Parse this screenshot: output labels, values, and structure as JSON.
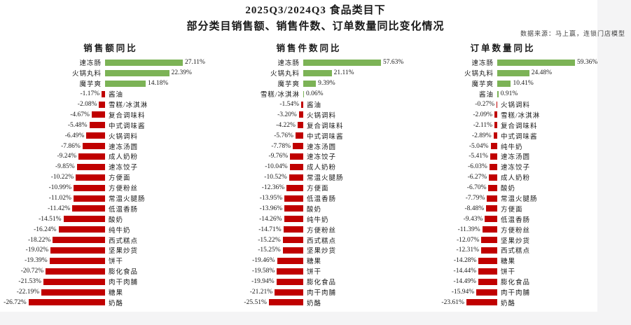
{
  "header": {
    "title_line1": "2025Q3/2024Q3 食品类目下",
    "title_line2": "部分类目销售额、销售件数、订单数量同比变化情况",
    "source_note": "数据来源：马上赢，连锁门店模型"
  },
  "colors": {
    "positive_bar": "#7CB356",
    "negative_bar": "#C00000",
    "page_background": "#f4f4f5",
    "chart_background": "#ffffff"
  },
  "chart_data": [
    {
      "type": "bar",
      "orientation": "horizontal",
      "title": "销售额同比",
      "unit": "%",
      "sorted": "descending",
      "categories": [
        "速冻肠",
        "火锅丸料",
        "魔芋爽",
        "酱油",
        "雪糕/冰淇淋",
        "复合调味料",
        "中式调味酱",
        "火锅调料",
        "速冻汤圆",
        "成人奶粉",
        "速冻饺子",
        "方便面",
        "方便粉丝",
        "常温火腿肠",
        "低温香肠",
        "酸奶",
        "纯牛奶",
        "西式糕点",
        "坚果炒货",
        "饼干",
        "膨化食品",
        "肉干肉脯",
        "糖果",
        "奶酪"
      ],
      "values": [
        27.11,
        22.39,
        14.18,
        -1.17,
        -2.08,
        -4.67,
        -5.48,
        -6.49,
        -7.86,
        -9.24,
        -9.85,
        -10.22,
        -10.99,
        -11.02,
        -11.42,
        -14.51,
        -16.24,
        -18.22,
        -19.02,
        -19.39,
        -20.72,
        -21.53,
        -22.19,
        -26.72
      ]
    },
    {
      "type": "bar",
      "orientation": "horizontal",
      "title": "销售件数同比",
      "unit": "%",
      "sorted": "descending",
      "categories": [
        "速冻肠",
        "火锅丸料",
        "魔芋爽",
        "雪糕/冰淇淋",
        "酱油",
        "火锅调料",
        "复合调味料",
        "中式调味酱",
        "速冻汤圆",
        "速冻饺子",
        "成人奶粉",
        "常温火腿肠",
        "方便面",
        "低温香肠",
        "酸奶",
        "纯牛奶",
        "方便粉丝",
        "西式糕点",
        "坚果炒货",
        "糖果",
        "饼干",
        "膨化食品",
        "肉干肉脯",
        "奶酪"
      ],
      "values": [
        57.63,
        21.11,
        9.39,
        0.06,
        -1.54,
        -3.2,
        -4.22,
        -5.76,
        -7.78,
        -9.76,
        -10.04,
        -10.52,
        -12.36,
        -13.95,
        -13.96,
        -14.26,
        -14.71,
        -15.22,
        -15.25,
        -19.46,
        -19.58,
        -19.94,
        -21.21,
        -25.51
      ]
    },
    {
      "type": "bar",
      "orientation": "horizontal",
      "title": "订单数量同比",
      "unit": "%",
      "sorted": "descending",
      "categories": [
        "速冻肠",
        "火锅丸料",
        "魔芋爽",
        "酱油",
        "火锅调料",
        "雪糕/冰淇淋",
        "复合调味料",
        "中式调味酱",
        "纯牛奶",
        "速冻汤圆",
        "速冻饺子",
        "成人奶粉",
        "酸奶",
        "常温火腿肠",
        "方便面",
        "低温香肠",
        "方便粉丝",
        "坚果炒货",
        "西式糕点",
        "糖果",
        "饼干",
        "膨化食品",
        "肉干肉脯",
        "奶酪"
      ],
      "values": [
        59.36,
        24.48,
        10.41,
        0.91,
        -0.27,
        -2.09,
        -2.11,
        -2.89,
        -5.04,
        -5.41,
        -6.03,
        -6.27,
        -6.7,
        -7.79,
        -8.48,
        -9.43,
        -11.39,
        -12.07,
        -12.31,
        -14.28,
        -14.44,
        -14.49,
        -15.94,
        -23.61
      ]
    }
  ]
}
